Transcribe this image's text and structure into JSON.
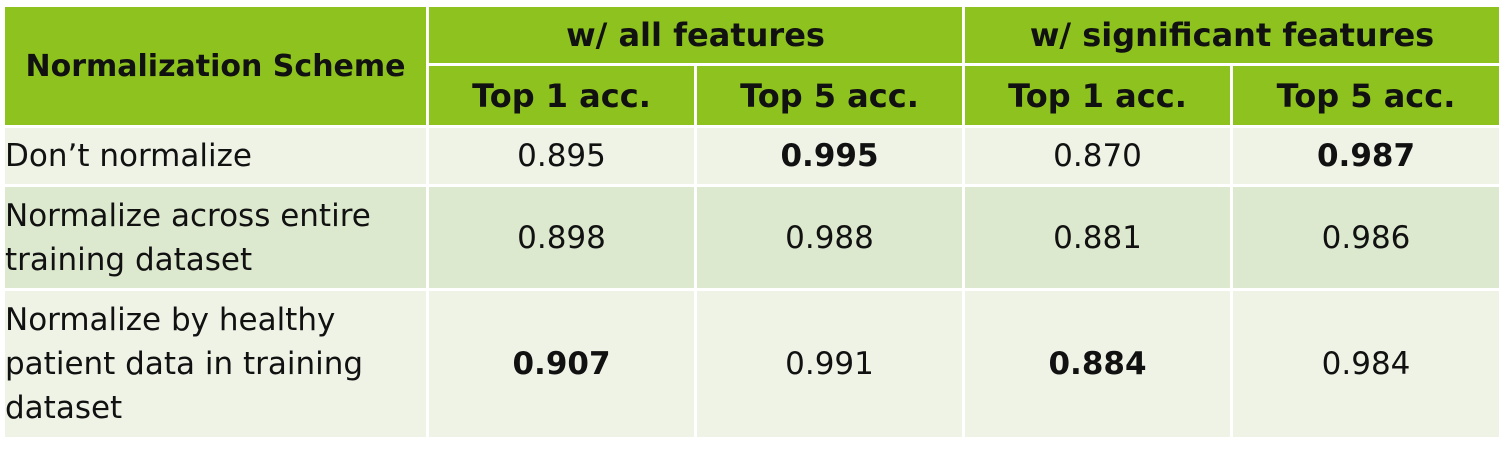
{
  "header": {
    "scheme_label": "Normalization Scheme",
    "group_all": "w/ all features",
    "group_significant": "w/ significant features",
    "top1": "Top 1 acc.",
    "top5": "Top 5 acc."
  },
  "rows": [
    {
      "label": "Don’t normalize",
      "all_top1": "0.895",
      "all_top5": "0.995",
      "sig_top1": "0.870",
      "sig_top5": "0.987"
    },
    {
      "label": "Normalize across entire training dataset",
      "all_top1": "0.898",
      "all_top5": "0.988",
      "sig_top1": "0.881",
      "sig_top5": "0.986"
    },
    {
      "label": "Normalize by healthy patient data in training dataset",
      "all_top1": "0.907",
      "all_top5": "0.991",
      "sig_top1": "0.884",
      "sig_top5": "0.984"
    }
  ],
  "colors": {
    "header_bg": "#8dc21f",
    "row_light": "#eef3e6",
    "row_dark": "#dde9cf"
  }
}
